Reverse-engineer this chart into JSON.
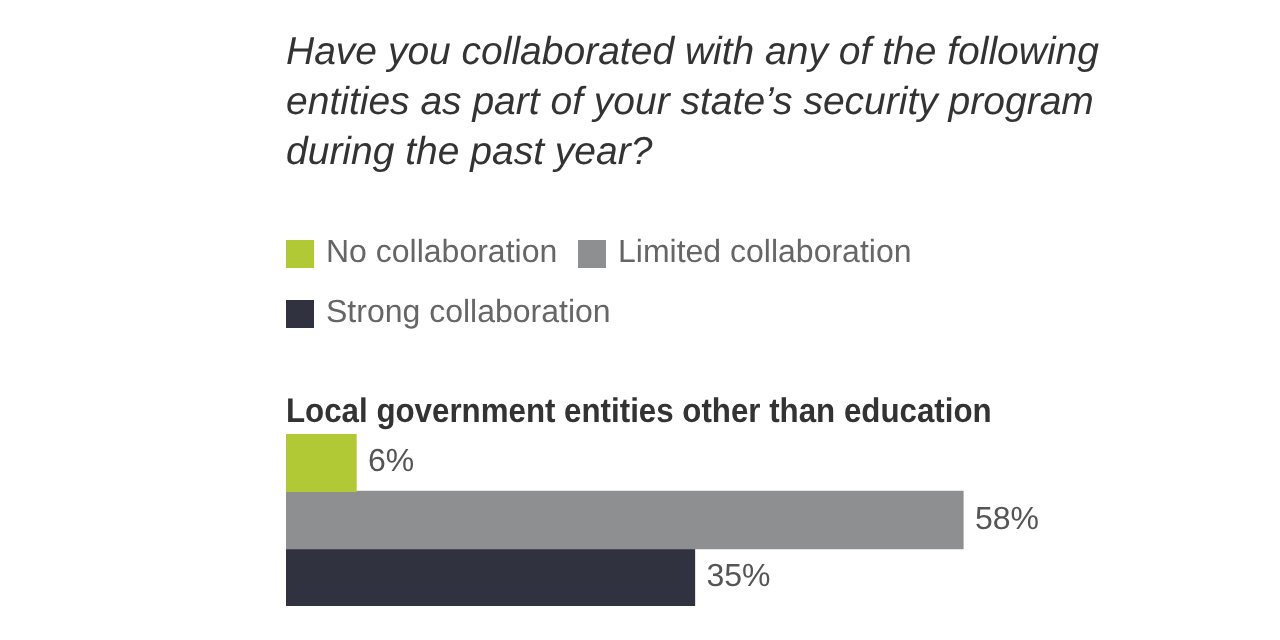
{
  "chart_data": {
    "type": "bar",
    "orientation": "horizontal",
    "title": "Have you collaborated with any of the following entities as part of your state’s security program during the past year?",
    "subtitle": "Local government entities other than education",
    "categories": [
      null
    ],
    "series": [
      {
        "name": "No collaboration",
        "color": "#b2c936",
        "values": [
          6
        ],
        "value_labels": [
          "6%"
        ]
      },
      {
        "name": "Limited collaboration",
        "color": "#8e8f91",
        "values": [
          58
        ],
        "value_labels": [
          "58%"
        ]
      },
      {
        "name": "Strong collaboration",
        "color": "#31323f",
        "values": [
          35
        ],
        "value_labels": [
          "35%"
        ]
      }
    ],
    "legend": "top left"
  }
}
